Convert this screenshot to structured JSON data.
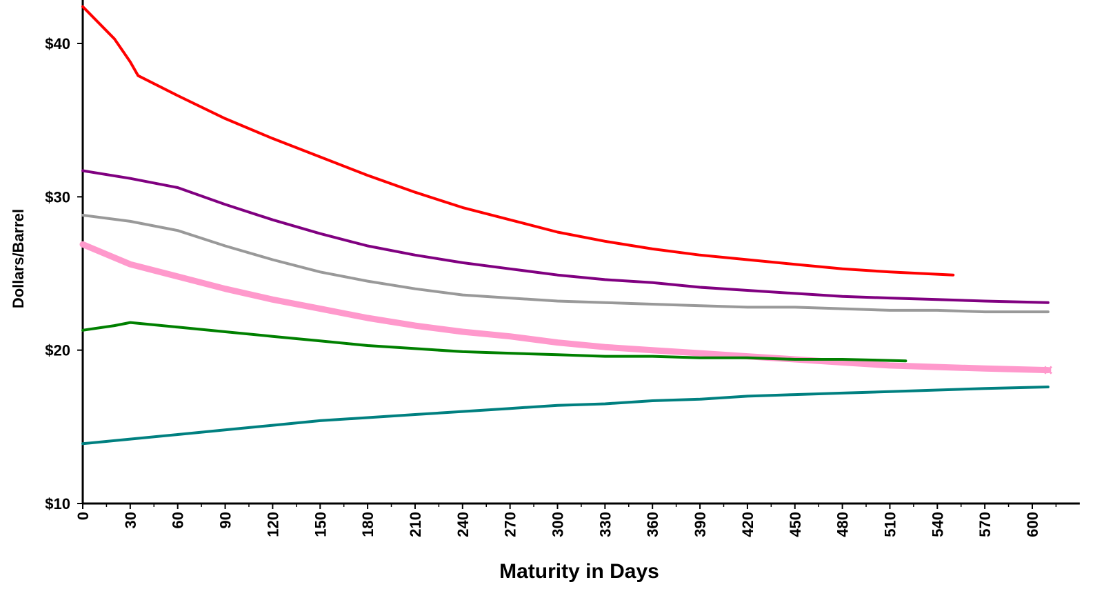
{
  "chart_data": {
    "type": "line",
    "title": "",
    "xlabel": "Maturity in Days",
    "ylabel": "Dollars/Barrel",
    "xlim": [
      0,
      630
    ],
    "ylim": [
      10,
      43
    ],
    "x_ticks": [
      "0",
      "30",
      "60",
      "90",
      "120",
      "150",
      "180",
      "210",
      "240",
      "270",
      "300",
      "330",
      "360",
      "390",
      "420",
      "450",
      "480",
      "510",
      "540",
      "570",
      "600"
    ],
    "y_ticks": [
      "$10",
      "$20",
      "$30",
      "$40"
    ],
    "grid": false,
    "legend": "none",
    "series": [
      {
        "color": "#ff0000",
        "points": [
          [
            0,
            42.4
          ],
          [
            20,
            40.3
          ],
          [
            30,
            38.8
          ],
          [
            35,
            37.9
          ],
          [
            60,
            36.6
          ],
          [
            90,
            35.1
          ],
          [
            120,
            33.8
          ],
          [
            150,
            32.6
          ],
          [
            180,
            31.4
          ],
          [
            210,
            30.3
          ],
          [
            240,
            29.3
          ],
          [
            270,
            28.5
          ],
          [
            300,
            27.7
          ],
          [
            330,
            27.1
          ],
          [
            360,
            26.6
          ],
          [
            390,
            26.2
          ],
          [
            420,
            25.9
          ],
          [
            450,
            25.6
          ],
          [
            480,
            25.3
          ],
          [
            510,
            25.1
          ],
          [
            550,
            24.9
          ]
        ]
      },
      {
        "color": "#800080",
        "points": [
          [
            0,
            31.7
          ],
          [
            30,
            31.2
          ],
          [
            60,
            30.6
          ],
          [
            90,
            29.5
          ],
          [
            120,
            28.5
          ],
          [
            150,
            27.6
          ],
          [
            180,
            26.8
          ],
          [
            210,
            26.2
          ],
          [
            240,
            25.7
          ],
          [
            270,
            25.3
          ],
          [
            300,
            24.9
          ],
          [
            330,
            24.6
          ],
          [
            360,
            24.4
          ],
          [
            390,
            24.1
          ],
          [
            420,
            23.9
          ],
          [
            450,
            23.7
          ],
          [
            480,
            23.5
          ],
          [
            510,
            23.4
          ],
          [
            540,
            23.3
          ],
          [
            570,
            23.2
          ],
          [
            610,
            23.1
          ]
        ]
      },
      {
        "color": "#999999",
        "points": [
          [
            0,
            28.8
          ],
          [
            30,
            28.4
          ],
          [
            60,
            27.8
          ],
          [
            90,
            26.8
          ],
          [
            120,
            25.9
          ],
          [
            150,
            25.1
          ],
          [
            180,
            24.5
          ],
          [
            210,
            24.0
          ],
          [
            240,
            23.6
          ],
          [
            270,
            23.4
          ],
          [
            300,
            23.2
          ],
          [
            330,
            23.1
          ],
          [
            360,
            23.0
          ],
          [
            390,
            22.9
          ],
          [
            420,
            22.8
          ],
          [
            450,
            22.8
          ],
          [
            480,
            22.7
          ],
          [
            510,
            22.6
          ],
          [
            540,
            22.6
          ],
          [
            570,
            22.5
          ],
          [
            610,
            22.5
          ]
        ]
      },
      {
        "color": "#ff99cc",
        "points": [
          [
            0,
            26.9
          ],
          [
            30,
            25.6
          ],
          [
            60,
            24.8
          ],
          [
            90,
            24.0
          ],
          [
            120,
            23.3
          ],
          [
            150,
            22.7
          ],
          [
            180,
            22.1
          ],
          [
            210,
            21.6
          ],
          [
            240,
            21.2
          ],
          [
            270,
            20.9
          ],
          [
            300,
            20.5
          ],
          [
            330,
            20.2
          ],
          [
            360,
            20.0
          ],
          [
            390,
            19.8
          ],
          [
            420,
            19.6
          ],
          [
            450,
            19.4
          ],
          [
            480,
            19.2
          ],
          [
            510,
            19.0
          ],
          [
            540,
            18.9
          ],
          [
            570,
            18.8
          ],
          [
            610,
            18.7
          ]
        ]
      },
      {
        "color": "#008000",
        "points": [
          [
            0,
            21.3
          ],
          [
            20,
            21.6
          ],
          [
            30,
            21.8
          ],
          [
            60,
            21.5
          ],
          [
            90,
            21.2
          ],
          [
            120,
            20.9
          ],
          [
            150,
            20.6
          ],
          [
            180,
            20.3
          ],
          [
            210,
            20.1
          ],
          [
            240,
            19.9
          ],
          [
            270,
            19.8
          ],
          [
            300,
            19.7
          ],
          [
            330,
            19.6
          ],
          [
            360,
            19.6
          ],
          [
            390,
            19.5
          ],
          [
            420,
            19.5
          ],
          [
            450,
            19.4
          ],
          [
            480,
            19.4
          ],
          [
            520,
            19.3
          ]
        ]
      },
      {
        "color": "#008080",
        "points": [
          [
            0,
            13.9
          ],
          [
            30,
            14.2
          ],
          [
            60,
            14.5
          ],
          [
            90,
            14.8
          ],
          [
            120,
            15.1
          ],
          [
            150,
            15.4
          ],
          [
            180,
            15.6
          ],
          [
            210,
            15.8
          ],
          [
            240,
            16.0
          ],
          [
            270,
            16.2
          ],
          [
            300,
            16.4
          ],
          [
            330,
            16.5
          ],
          [
            360,
            16.7
          ],
          [
            390,
            16.8
          ],
          [
            420,
            17.0
          ],
          [
            450,
            17.1
          ],
          [
            480,
            17.2
          ],
          [
            510,
            17.3
          ],
          [
            540,
            17.4
          ],
          [
            570,
            17.5
          ],
          [
            610,
            17.6
          ]
        ]
      }
    ]
  }
}
